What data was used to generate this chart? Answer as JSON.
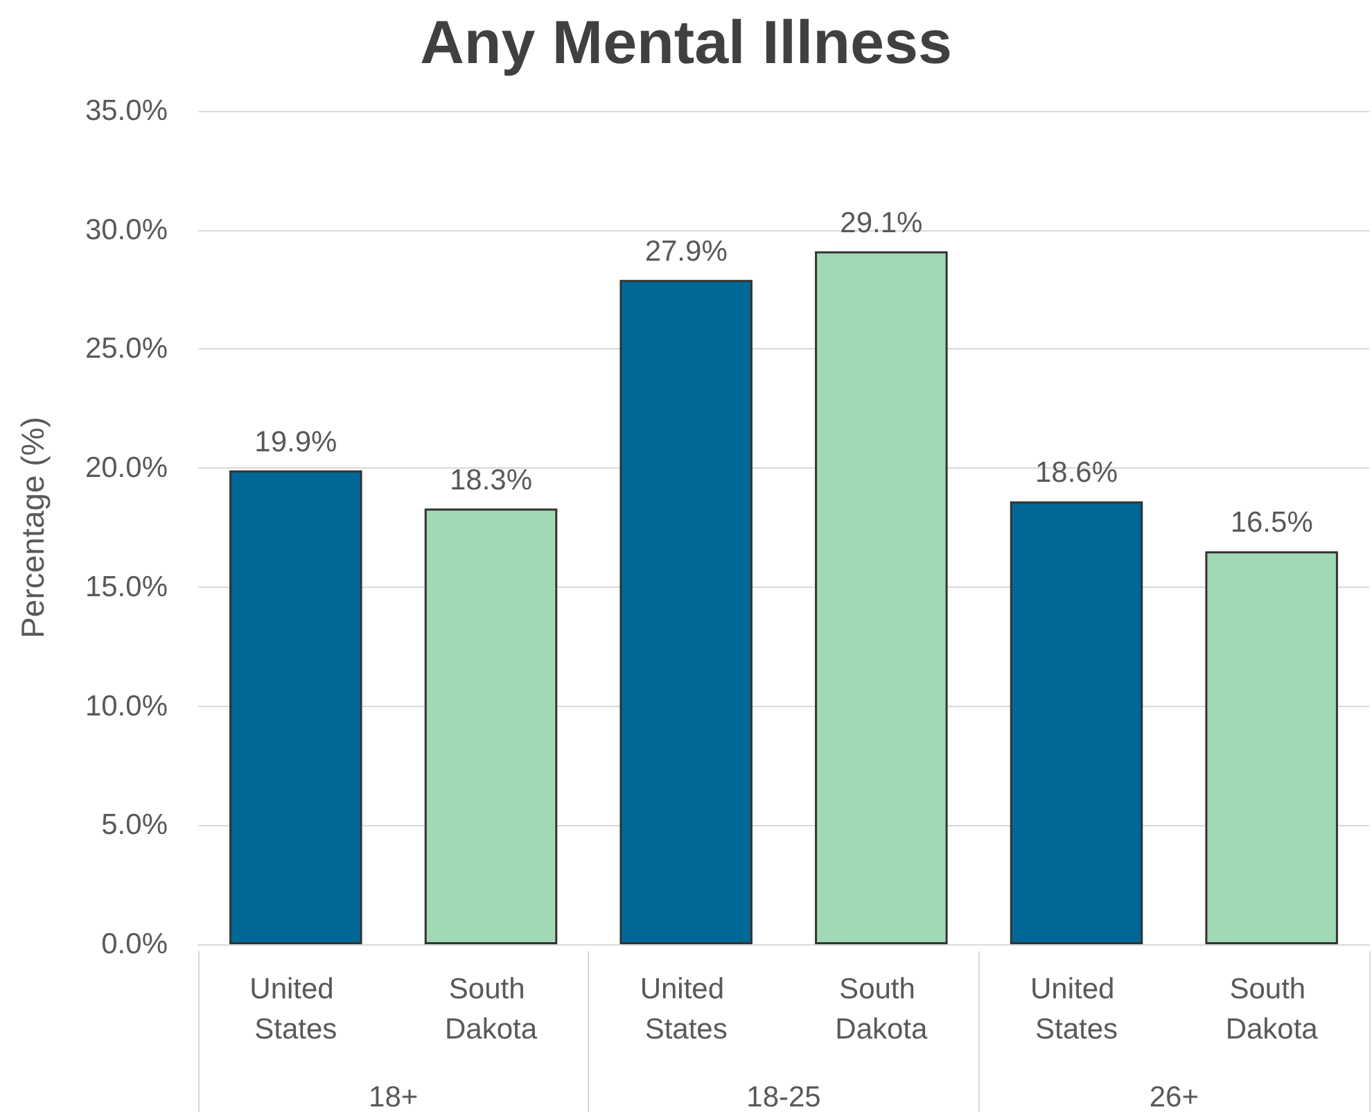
{
  "chart_data": {
    "type": "bar",
    "title": "Any Mental Illness",
    "ylabel": "Percentage (%)",
    "categories": [
      "18+",
      "18-25",
      "26+"
    ],
    "series": [
      {
        "name": "United States",
        "color": "#006896",
        "values": [
          19.9,
          27.9,
          18.6
        ],
        "value_labels": [
          "19.9%",
          "27.9%",
          "18.6%"
        ]
      },
      {
        "name": "South Dakota",
        "color": "#a0d9b4",
        "values": [
          18.3,
          29.1,
          16.5
        ],
        "value_labels": [
          "18.3%",
          "29.1%",
          "16.5%"
        ]
      }
    ],
    "ylim": [
      0,
      35
    ],
    "yticks": [
      {
        "value": 0,
        "label": "0.0%"
      },
      {
        "value": 5,
        "label": "5.0%"
      },
      {
        "value": 10,
        "label": "10.0%"
      },
      {
        "value": 15,
        "label": "15.0%"
      },
      {
        "value": 20,
        "label": "20.0%"
      },
      {
        "value": 25,
        "label": "25.0%"
      },
      {
        "value": 30,
        "label": "30.0%"
      },
      {
        "value": 35,
        "label": "35.0%"
      }
    ],
    "grid": "y",
    "legend": false
  }
}
